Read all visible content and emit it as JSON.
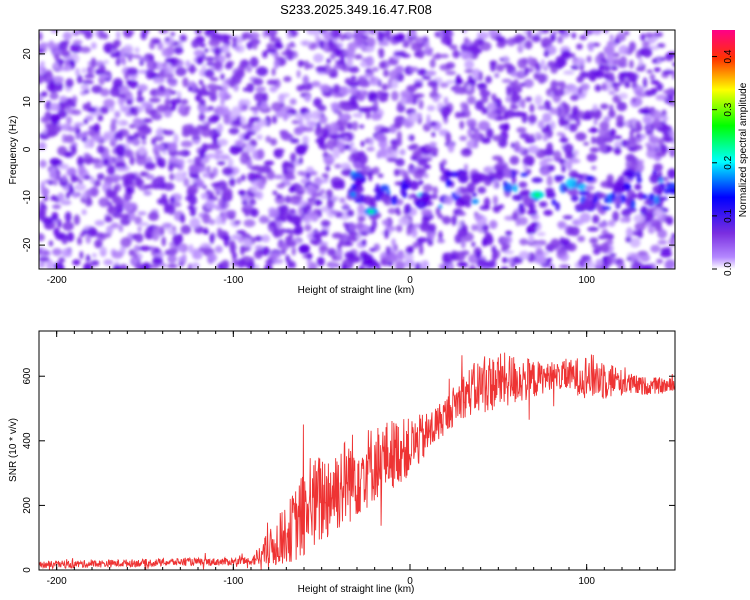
{
  "title": "S233.2025.349.16.47.R08",
  "chart_data": [
    {
      "type": "heatmap",
      "title": "S233.2025.349.16.47.R08",
      "xlabel": "Height of straight line (km)",
      "ylabel": "Frequency (Hz)",
      "xlim": [
        -210,
        150
      ],
      "ylim": [
        -25,
        25
      ],
      "xticks": [
        -200,
        -100,
        0,
        100
      ],
      "yticks": [
        -20,
        -10,
        0,
        10,
        20
      ],
      "colorbar": {
        "label": "Normalized spectral amplitude",
        "range": [
          0.0,
          0.45
        ],
        "ticks": [
          0.0,
          0.1,
          0.2,
          0.3,
          0.4
        ],
        "colors": [
          "#ffffff",
          "#8a2be2",
          "#0000ff",
          "#00ffff",
          "#00ff00",
          "#ffff00",
          "#ff0000",
          "#ff00aa"
        ]
      },
      "features": [
        {
          "description": "enhanced band",
          "x_range": [
            -40,
            150
          ],
          "frequency_center": -9,
          "frequency_width": 4
        },
        {
          "description": "peak",
          "x": 72,
          "frequency": -9.5,
          "value": 0.2
        },
        {
          "description": "peak",
          "x": -22,
          "frequency": -13,
          "value": 0.18
        }
      ]
    },
    {
      "type": "line",
      "xlabel": "Height of straight line (km)",
      "ylabel": "SNR (10 * v/v)",
      "xlim": [
        -210,
        150
      ],
      "ylim": [
        0,
        740
      ],
      "xticks": [
        -200,
        -100,
        0,
        100
      ],
      "yticks": [
        0,
        200,
        400,
        600
      ],
      "color": "#ee3333",
      "x": [
        -210,
        -190,
        -170,
        -150,
        -130,
        -110,
        -90,
        -80,
        -70,
        -60,
        -50,
        -40,
        -30,
        -20,
        -10,
        0,
        10,
        20,
        30,
        40,
        50,
        60,
        70,
        80,
        90,
        100,
        110,
        120,
        130,
        140,
        150
      ],
      "values": [
        15,
        18,
        20,
        22,
        25,
        25,
        28,
        60,
        110,
        170,
        220,
        260,
        300,
        330,
        360,
        380,
        420,
        480,
        540,
        570,
        585,
        590,
        590,
        600,
        600,
        600,
        595,
        580,
        570,
        570,
        570
      ],
      "noise_amplitude": [
        12,
        12,
        12,
        12,
        12,
        12,
        12,
        60,
        90,
        140,
        150,
        140,
        140,
        120,
        110,
        90,
        70,
        55,
        70,
        90,
        90,
        80,
        60,
        40,
        50,
        70,
        70,
        40,
        30,
        25,
        25
      ]
    }
  ]
}
